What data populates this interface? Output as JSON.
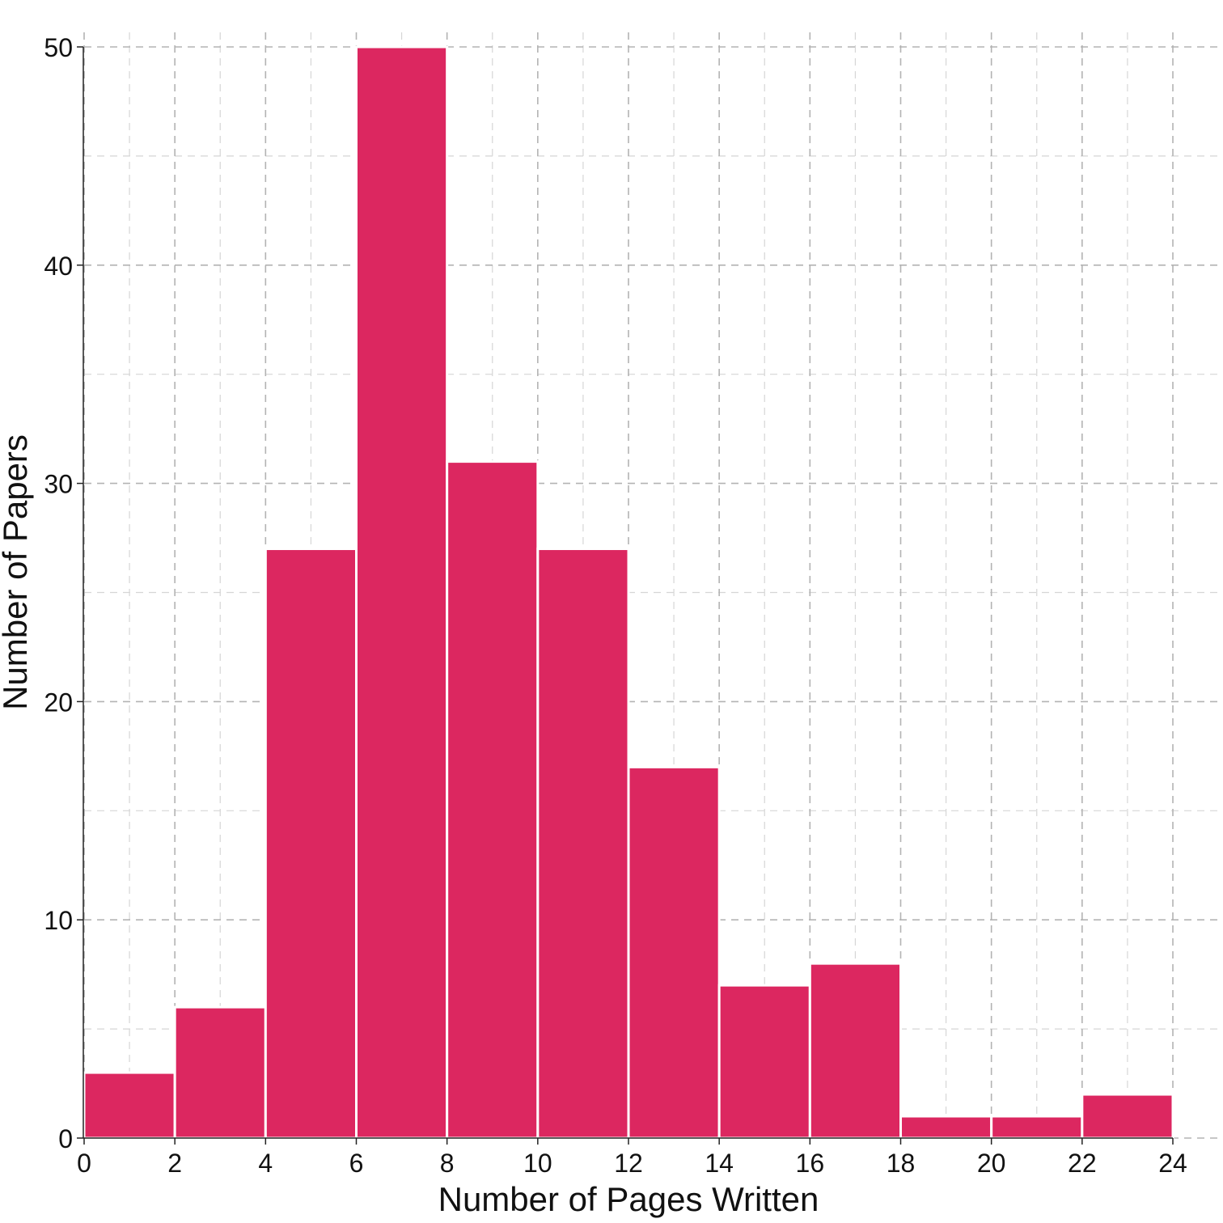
{
  "chart_data": {
    "type": "bar",
    "title": "",
    "xlabel": "Number of Pages Written",
    "ylabel": "Number of Papers",
    "bin_edges": [
      0,
      2,
      4,
      6,
      8,
      10,
      12,
      14,
      16,
      18,
      20,
      22,
      24
    ],
    "values": [
      3,
      6,
      27,
      50,
      31,
      27,
      17,
      7,
      8,
      1,
      1,
      2
    ],
    "xlim": [
      0,
      24
    ],
    "ylim": [
      0,
      50
    ],
    "x_ticks": [
      0,
      2,
      4,
      6,
      8,
      10,
      12,
      14,
      16,
      18,
      20,
      22,
      24
    ],
    "x_tick_labels": [
      "0",
      "2",
      "4",
      "6",
      "8",
      "10",
      "12",
      "14",
      "16",
      "18",
      "20",
      "22",
      "24"
    ],
    "y_ticks": [
      0,
      10,
      20,
      30,
      40,
      50
    ],
    "y_tick_labels": [
      "0",
      "10",
      "20",
      "30",
      "40",
      "50"
    ],
    "grid": true,
    "bar_color": "#dc2760"
  }
}
